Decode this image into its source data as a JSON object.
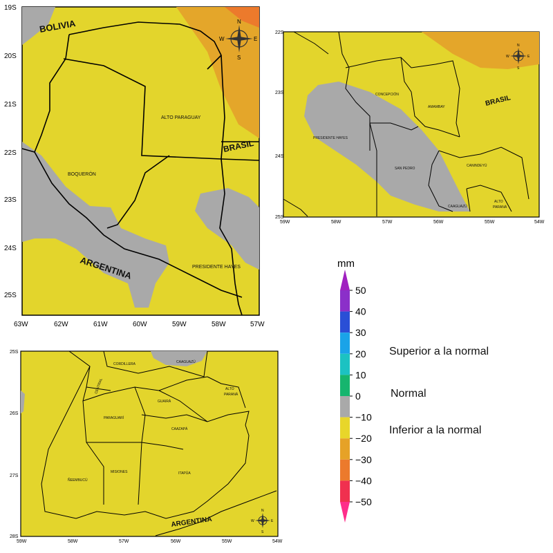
{
  "map_north": {
    "y_ticks": [
      "19S",
      "20S",
      "21S",
      "22S",
      "23S",
      "24S",
      "25S"
    ],
    "x_ticks": [
      "63W",
      "62W",
      "61W",
      "60W",
      "59W",
      "58W",
      "57W"
    ],
    "labels": {
      "bolivia": "BOLIVIA",
      "brasil": "BRASIL",
      "argentina": "ARGENTINA",
      "alto_paraguay": "ALTO PARAGUAY",
      "boqueron": "BOQUERÓN",
      "presidente_hayes": "PRESIDENTE HAYES"
    },
    "compass": {
      "n": "N",
      "s": "S",
      "e": "E",
      "w": "W"
    }
  },
  "map_east": {
    "y_ticks": [
      "22S",
      "23S",
      "24S",
      "25S"
    ],
    "x_ticks": [
      "59W",
      "58W",
      "57W",
      "56W",
      "55W",
      "54W"
    ],
    "labels": {
      "brasil": "BRASIL",
      "concepcion": "CONCEPCIÓN",
      "amambay": "AMAMBAY",
      "presidente_hayes": "PRESIDENTE HAYES",
      "san_pedro": "SAN PEDRO",
      "canindeyu": "CANINDEYÚ",
      "caaguazu": "CAAGUAZÚ",
      "alto_parana_1": "ALTO",
      "alto_parana_2": "PARANÁ"
    },
    "compass": {
      "n": "N",
      "s": "S",
      "e": "E",
      "w": "W"
    }
  },
  "map_south": {
    "y_ticks": [
      "25S",
      "26S",
      "27S",
      "28S"
    ],
    "x_ticks": [
      "59W",
      "58W",
      "57W",
      "56W",
      "55W",
      "54W"
    ],
    "labels": {
      "cordillera": "CORDILLERA",
      "caaguazu": "CAAGUAZÚ",
      "central": "CENTRAL",
      "alto_parana_1": "ALTO",
      "alto_parana_2": "PARANÁ",
      "paraguari": "PARAGUARÍ",
      "guaira": "GUAIRÁ",
      "caazapa": "CAAZAPÁ",
      "neembucu": "ÑEEMBUCÚ",
      "misiones": "MISIONES",
      "itapua": "ITAPÚA",
      "argentina": "ARGENTINA"
    },
    "compass": {
      "n": "N",
      "s": "S",
      "e": "E",
      "w": "W"
    }
  },
  "colorbar": {
    "unit": "mm",
    "tick_labels": [
      "50",
      "40",
      "30",
      "20",
      "10",
      "0",
      "−10",
      "−20",
      "−30",
      "−40",
      "−50"
    ],
    "bins": [
      {
        "color": "#8b2fc9"
      },
      {
        "color": "#2a4fd6"
      },
      {
        "color": "#1aa3e8"
      },
      {
        "color": "#1cc2c2"
      },
      {
        "color": "#16b56e"
      },
      {
        "color": "#a9a9a9"
      },
      {
        "color": "#e8d62a"
      },
      {
        "color": "#e6a227"
      },
      {
        "color": "#ec7a2c"
      },
      {
        "color": "#f0304f"
      }
    ],
    "top_arrow_color": "#a020c0",
    "bottom_arrow_color": "#ff2d8a"
  },
  "legend": {
    "superior": "Superior a la normal",
    "normal": "Normal",
    "inferior": "Inferior a la normal"
  },
  "colors": {
    "below_normal": "#e3d52c",
    "normal": "#a9a9a9",
    "dry_20_30": "#e4a62a",
    "dry_30_40": "#ec7a2c"
  }
}
